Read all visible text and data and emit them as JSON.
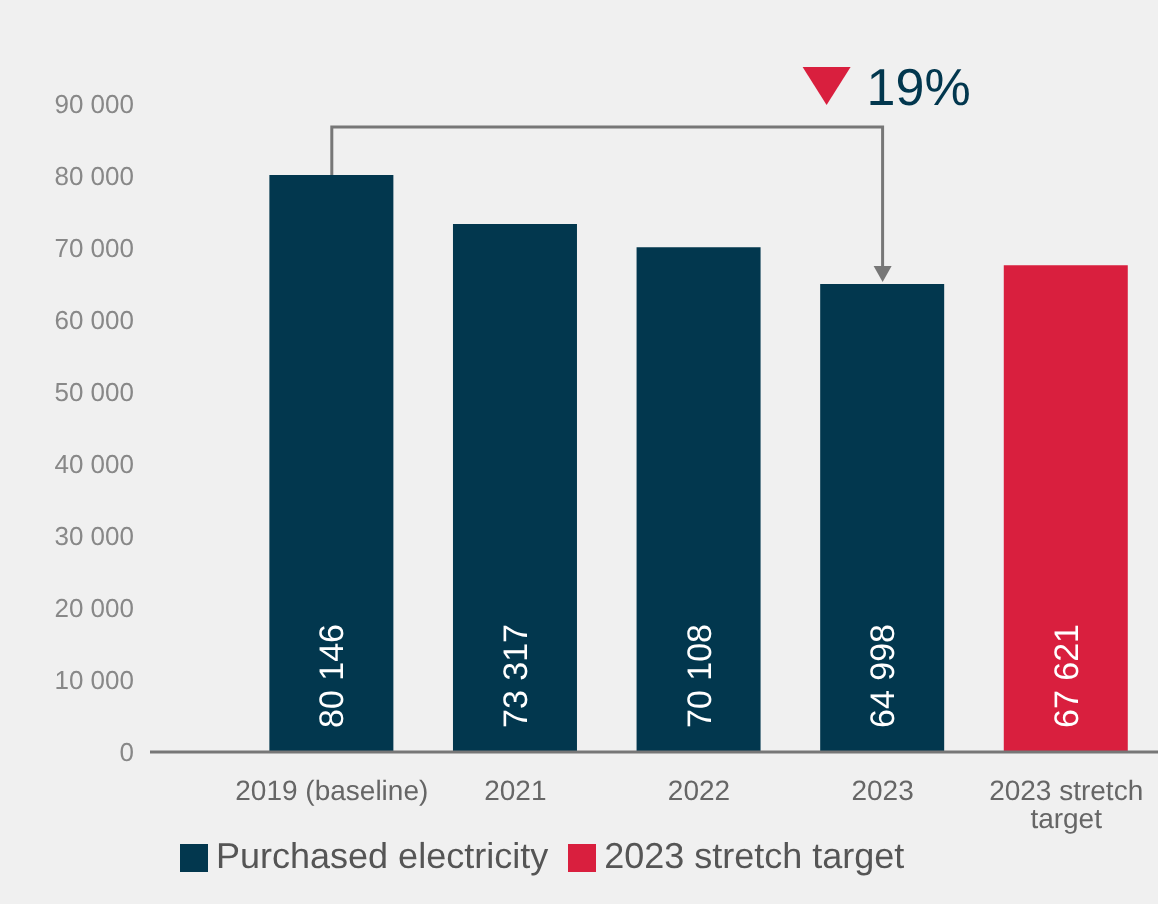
{
  "chart_data": {
    "type": "bar",
    "stacked": true,
    "legend": "bottom left",
    "grid": false,
    "categories": [
      "2019 (baseline)",
      "2021",
      "2022",
      "2023",
      "2023 stretch target"
    ],
    "series": [
      {
        "name": "Purchased electricity",
        "color": "#02374e",
        "values": [
          80146,
          73317,
          70108,
          64998,
          null
        ],
        "value_labels": [
          "80 146",
          "73 317",
          "70 108",
          "64 998",
          null
        ]
      },
      {
        "name": "2023 stretch target",
        "color": "#d91f3e",
        "values": [
          null,
          null,
          null,
          null,
          67621
        ],
        "value_labels": [
          null,
          null,
          null,
          null,
          "67 621"
        ]
      }
    ],
    "ylim": [
      0,
      90000
    ],
    "yticks": [
      {
        "value": 0,
        "label": "0"
      },
      {
        "value": 10000,
        "label": "10 000"
      },
      {
        "value": 20000,
        "label": "20 000"
      },
      {
        "value": 30000,
        "label": "30 000"
      },
      {
        "value": 40000,
        "label": "40 000"
      },
      {
        "value": 50000,
        "label": "50 000"
      },
      {
        "value": 60000,
        "label": "60 000"
      },
      {
        "value": 70000,
        "label": "70 000"
      },
      {
        "value": 80000,
        "label": "80 000"
      },
      {
        "value": 90000,
        "label": "90 000"
      }
    ],
    "annotations": [
      "19%"
    ]
  }
}
